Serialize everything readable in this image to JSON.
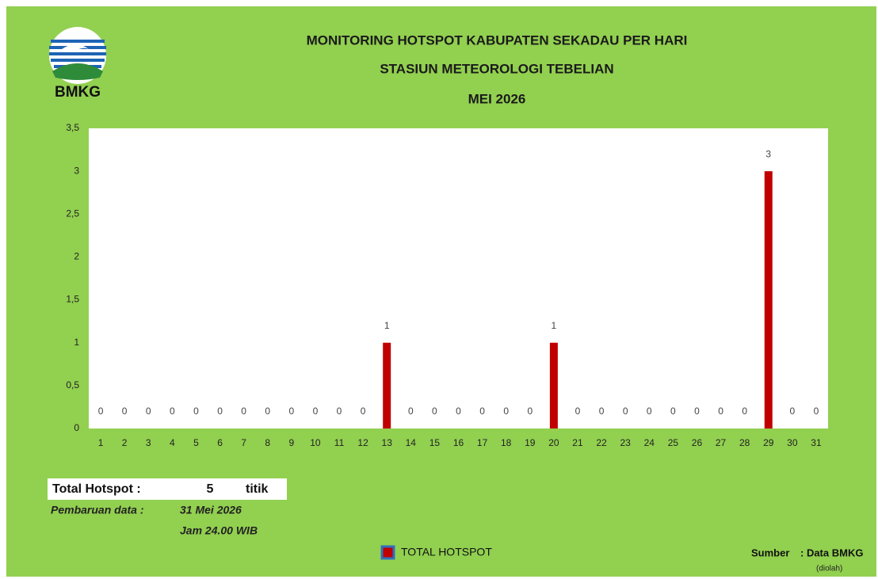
{
  "logo_text": "BMKG",
  "chart_data": {
    "type": "bar",
    "title": "MONITORING HOTSPOT KABUPATEN SEKADAU PER HARI",
    "subtitle": "STASIUN METEOROLOGI TEBELIAN",
    "period": "MEI 2026",
    "categories": [
      "1",
      "2",
      "3",
      "4",
      "5",
      "6",
      "7",
      "8",
      "9",
      "10",
      "11",
      "12",
      "13",
      "14",
      "15",
      "16",
      "17",
      "18",
      "19",
      "20",
      "21",
      "22",
      "23",
      "24",
      "25",
      "26",
      "27",
      "28",
      "29",
      "30",
      "31"
    ],
    "series": [
      {
        "name": "TOTAL HOTSPOT",
        "color": "#c00000",
        "values": [
          0,
          0,
          0,
          0,
          0,
          0,
          0,
          0,
          0,
          0,
          0,
          0,
          1,
          0,
          0,
          0,
          0,
          0,
          0,
          1,
          0,
          0,
          0,
          0,
          0,
          0,
          0,
          0,
          3,
          0,
          0
        ]
      }
    ],
    "ylim": [
      0,
      3.5
    ],
    "yticks": [
      0,
      {
        "value": 0.5,
        "label": "0,5"
      },
      1,
      {
        "value": 1.5,
        "label": "1,5"
      },
      2,
      {
        "value": 2.5,
        "label": "2,5"
      },
      3,
      {
        "value": 3.5,
        "label": "3,5"
      }
    ],
    "grid": false
  },
  "info": {
    "total_label": "Total Hotspot :",
    "total": 5,
    "total_unit": "titik",
    "update_label": "Pembaruan data :",
    "update_date": "31 Mei 2026",
    "update_time": "Jam 24.00 WIB"
  },
  "source": {
    "label": "Sumber",
    "value": ": Data BMKG",
    "note": "(diolah)"
  }
}
